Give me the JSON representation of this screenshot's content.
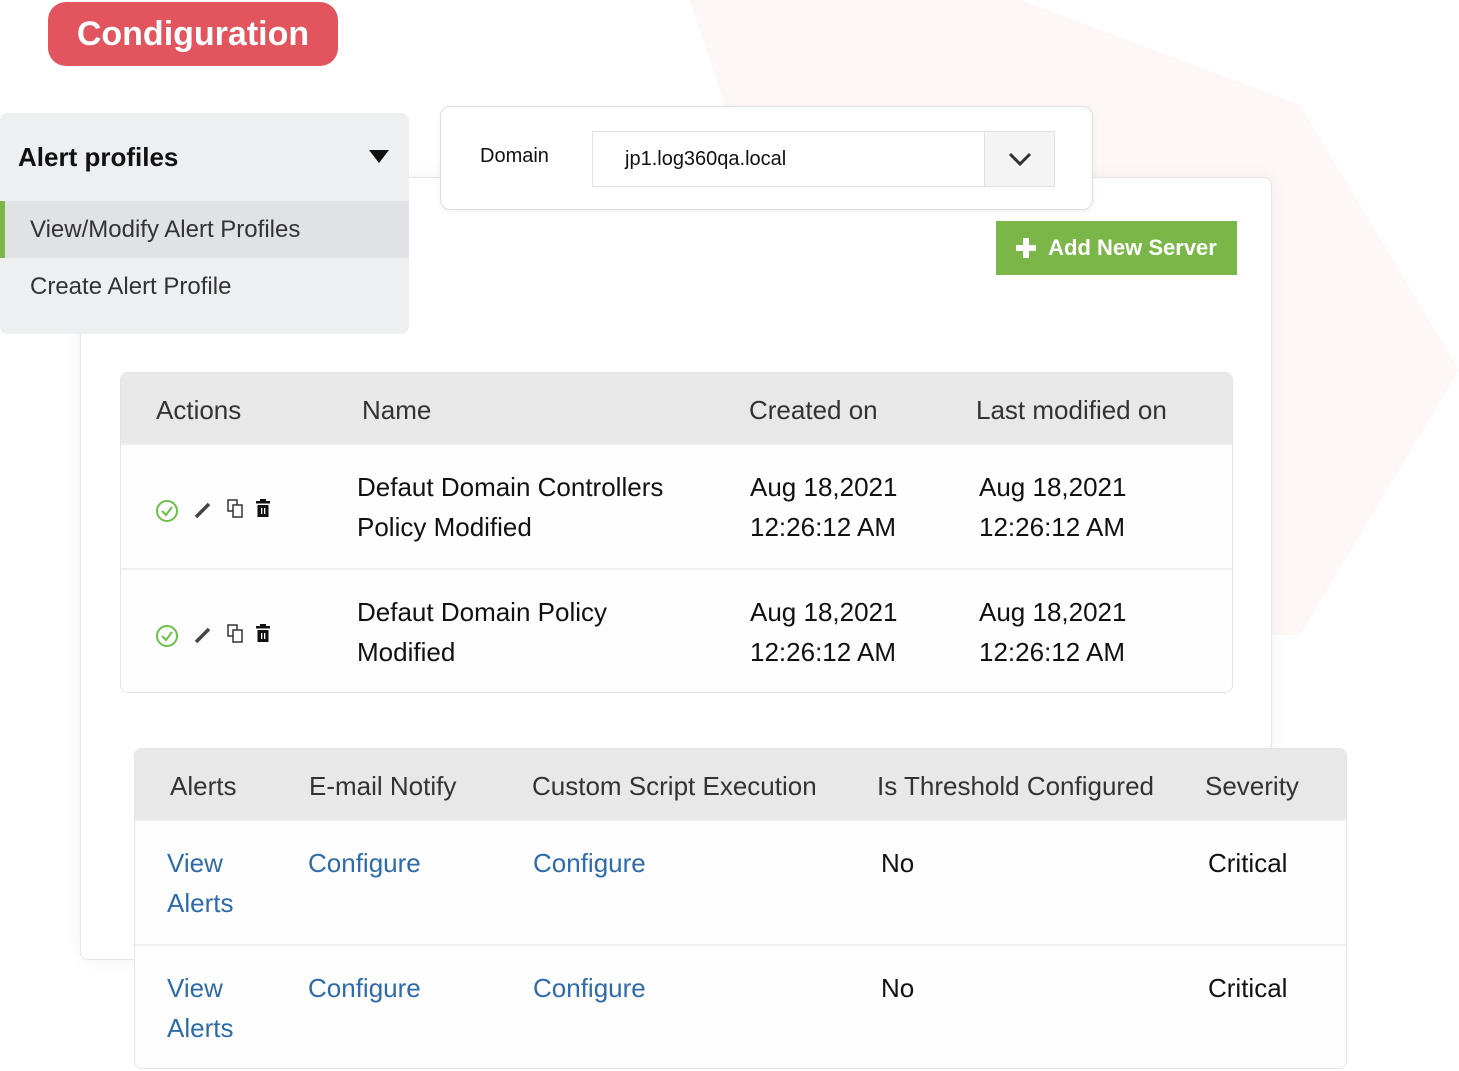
{
  "badge": {
    "title": "Condiguration",
    "color": "#e2555e"
  },
  "sidebar": {
    "header": "Alert profiles",
    "items": [
      {
        "label": "View/Modify Alert Profiles",
        "active": true
      },
      {
        "label": "Create Alert Profile",
        "active": false
      }
    ]
  },
  "domain": {
    "label": "Domain",
    "value": "jp1.log360qa.local"
  },
  "add_button": {
    "label": "Add New Server",
    "color": "#7ab648"
  },
  "profiles": {
    "headers": [
      "Actions",
      "Name",
      "Created on",
      "Last modified on"
    ],
    "rows": [
      {
        "name": [
          "Defaut Domain Controllers",
          "Policy Modified"
        ],
        "created": [
          "Aug 18,2021",
          "12:26:12 AM"
        ],
        "modified": [
          "Aug 18,2021",
          "12:26:12 AM"
        ]
      },
      {
        "name": [
          "Defaut Domain Policy",
          "Modified"
        ],
        "created": [
          "Aug 18,2021",
          "12:26:12 AM"
        ],
        "modified": [
          "Aug 18,2021",
          "12:26:12 AM"
        ]
      }
    ],
    "action_icons": [
      "check-circle-icon",
      "pencil-icon",
      "copy-icon",
      "trash-icon"
    ]
  },
  "alerts": {
    "headers": [
      "Alerts",
      "E-mail Notify",
      "Custom Script Execution",
      "Is Threshold Configured",
      "Severity"
    ],
    "rows": [
      {
        "alerts": [
          "View",
          "Alerts"
        ],
        "email": "Configure",
        "script": "Configure",
        "threshold": "No",
        "severity": "Critical"
      },
      {
        "alerts": [
          "View",
          "Alerts"
        ],
        "email": "Configure",
        "script": "Configure",
        "threshold": "No",
        "severity": "Critical"
      }
    ]
  }
}
